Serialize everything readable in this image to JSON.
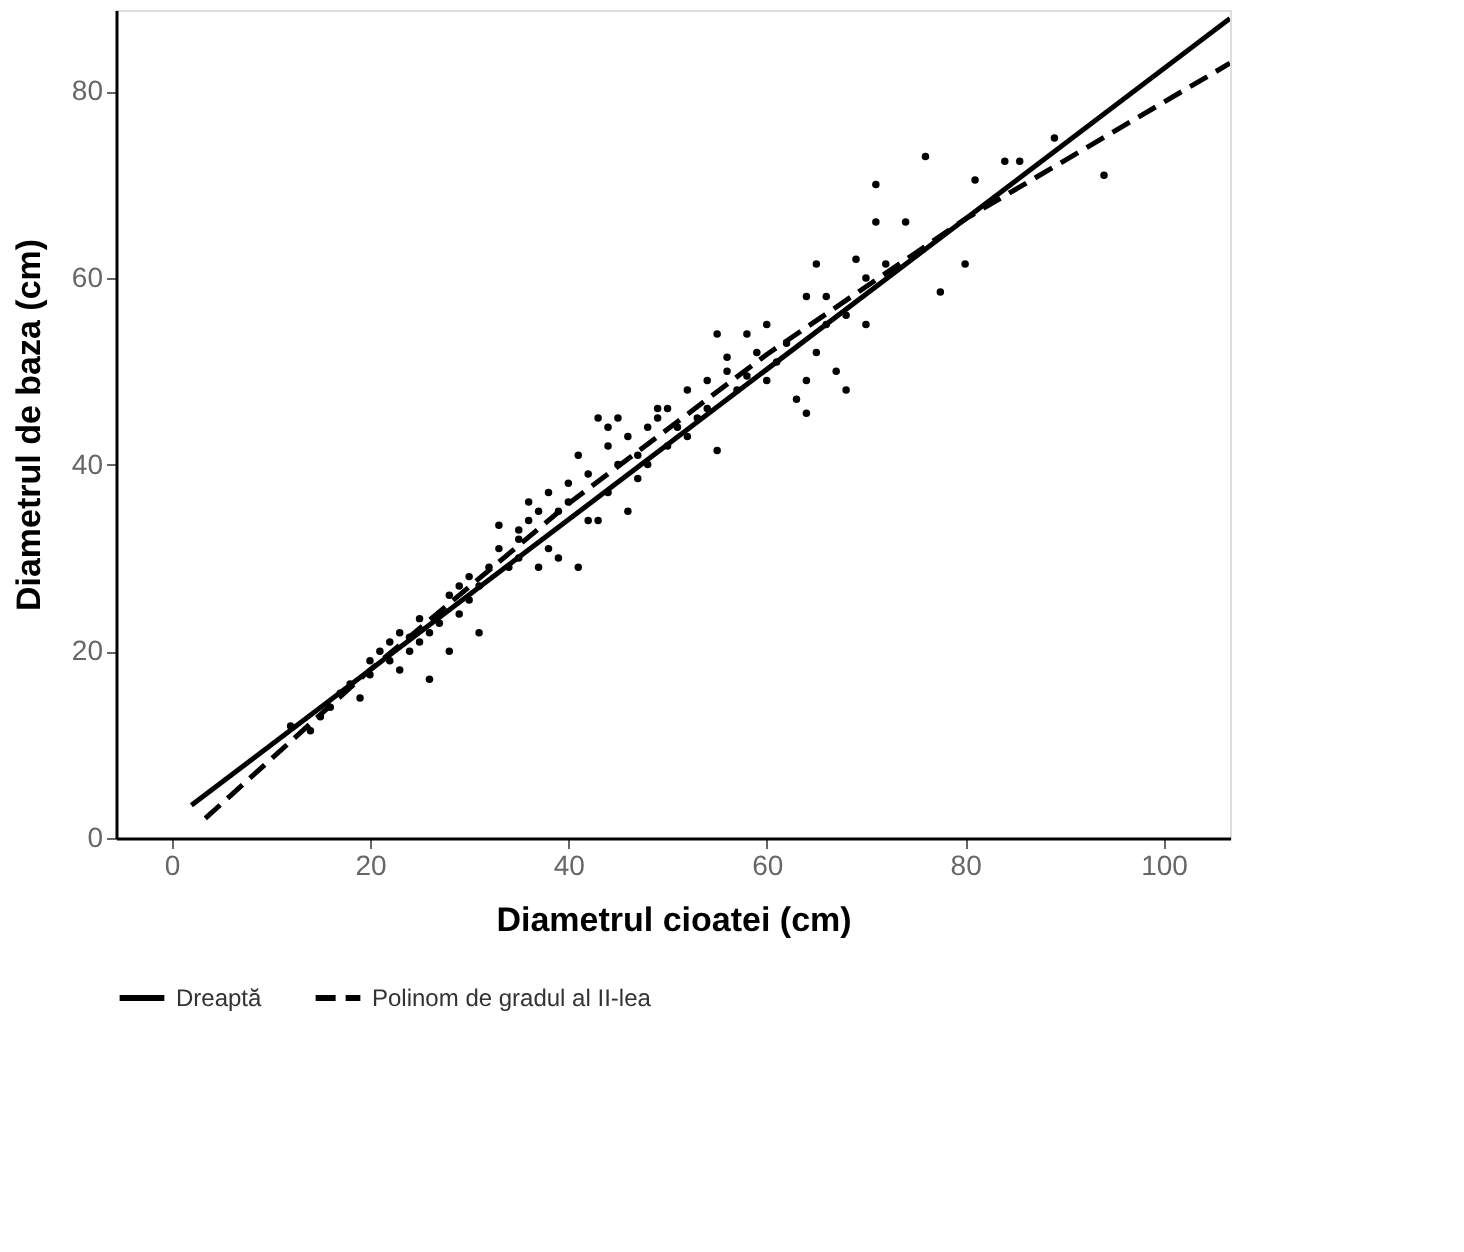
{
  "chart_data": {
    "type": "scatter",
    "xlabel": "Diametrul cioatei (cm)",
    "ylabel": "Diametrul de baza (cm)",
    "xlim": [
      -5.6,
      106.7
    ],
    "ylim": [
      0,
      88.7
    ],
    "xticks": [
      0,
      20,
      40,
      60,
      80,
      100
    ],
    "yticks": [
      0,
      20,
      40,
      60,
      80
    ],
    "grid": false,
    "legend": "bottom",
    "series": [
      {
        "color": "#000000",
        "marker": "circle",
        "x": [
          94,
          89,
          84,
          76,
          71,
          71,
          80,
          77.5,
          68,
          64,
          65,
          64,
          81,
          85.5,
          74,
          69,
          70,
          68,
          67,
          63,
          64,
          65,
          66,
          62,
          60,
          58,
          59,
          55,
          56,
          57,
          54,
          55,
          52,
          50,
          49,
          48,
          48,
          47,
          46,
          45,
          44,
          44,
          43,
          42,
          41,
          40,
          40,
          39,
          38,
          37,
          38,
          36,
          35,
          35,
          34,
          33,
          32,
          31,
          30,
          30,
          29,
          28,
          27,
          26,
          26,
          25,
          24,
          24,
          23,
          22,
          21,
          20,
          19,
          18,
          17,
          16,
          15,
          14,
          12,
          43,
          46,
          41,
          39,
          36,
          33,
          44,
          47,
          50,
          53,
          52,
          54,
          56,
          58,
          61,
          28,
          31,
          23,
          35,
          42,
          45,
          49,
          51,
          37,
          29,
          25,
          22,
          20,
          60,
          66,
          70,
          72
        ],
        "values": [
          71,
          75,
          72.5,
          73,
          70,
          66,
          61.5,
          58.5,
          48,
          45.5,
          61.5,
          58,
          70.5,
          72.5,
          66,
          62,
          55,
          56,
          50,
          47,
          49,
          52,
          55,
          53,
          55,
          54,
          52,
          54,
          50,
          48,
          46,
          41.5,
          48,
          46,
          45,
          44,
          40,
          38.5,
          43,
          40,
          37,
          42,
          45,
          34,
          41,
          38,
          36,
          35,
          31,
          29,
          37,
          34,
          32,
          30,
          29,
          31,
          29,
          27,
          28,
          25.5,
          24,
          26,
          23,
          22,
          17,
          21,
          21.5,
          20,
          22,
          19,
          20,
          17.5,
          15,
          16.5,
          15.5,
          14,
          13,
          11.5,
          12,
          34,
          35,
          29,
          30,
          36,
          33.5,
          44,
          41,
          42,
          45,
          43,
          49,
          51.5,
          49.5,
          51,
          20,
          22,
          18,
          33,
          39,
          45,
          46,
          44,
          35,
          27,
          23.5,
          21,
          19,
          49,
          58,
          60,
          61.5
        ]
      },
      {
        "type": "line",
        "name": "Dreaptă",
        "color": "#000000",
        "line_style": "solid",
        "x": [
          2,
          106.7
        ],
        "values": [
          3.5,
          87.8
        ]
      },
      {
        "type": "line",
        "name": "Polinom de gradul al II-lea",
        "color": "#000000",
        "line_style": "dashed",
        "x": [
          3.4,
          20,
          40,
          60,
          80,
          106.7
        ],
        "values": [
          2.1,
          18,
          35.8,
          51.8,
          66.3,
          83
        ]
      }
    ]
  }
}
